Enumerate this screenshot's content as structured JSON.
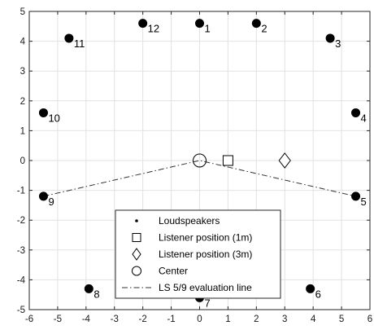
{
  "chart_data": {
    "type": "scatter",
    "title": "",
    "xlabel": "",
    "ylabel": "",
    "xlim": [
      -6,
      6
    ],
    "ylim": [
      -5,
      5
    ],
    "grid": true,
    "x_ticks": [
      -6,
      -5,
      -4,
      -3,
      -2,
      -1,
      0,
      1,
      2,
      3,
      4,
      5,
      6
    ],
    "y_ticks": [
      -5,
      -4,
      -3,
      -2,
      -1,
      0,
      1,
      2,
      3,
      4,
      5
    ],
    "legend_placement": "bottom-center",
    "series": [
      {
        "name": "Loudspeakers",
        "marker": "filled-circle",
        "points": [
          {
            "label": "1",
            "x": 0,
            "y": 4.6
          },
          {
            "label": "2",
            "x": 2,
            "y": 4.6
          },
          {
            "label": "3",
            "x": 4.6,
            "y": 4.1
          },
          {
            "label": "4",
            "x": 5.5,
            "y": 1.6
          },
          {
            "label": "5",
            "x": 5.5,
            "y": -1.2
          },
          {
            "label": "6",
            "x": 3.9,
            "y": -4.3
          },
          {
            "label": "7",
            "x": 0,
            "y": -4.6
          },
          {
            "label": "8",
            "x": -3.9,
            "y": -4.3
          },
          {
            "label": "9",
            "x": -5.5,
            "y": -1.2
          },
          {
            "label": "10",
            "x": -5.5,
            "y": 1.6
          },
          {
            "label": "11",
            "x": -4.6,
            "y": 4.1
          },
          {
            "label": "12",
            "x": -2,
            "y": 4.6
          }
        ]
      },
      {
        "name": "Listener position (1m)",
        "marker": "square",
        "points": [
          {
            "x": 1,
            "y": 0
          }
        ]
      },
      {
        "name": "Listener position (3m)",
        "marker": "diamond",
        "points": [
          {
            "x": 3,
            "y": 0
          }
        ]
      },
      {
        "name": "Center",
        "marker": "circle",
        "points": [
          {
            "x": 0,
            "y": 0
          }
        ]
      },
      {
        "name": "LS 5/9 evaluation line",
        "marker": "dash-dot-line",
        "points": [
          {
            "x": -5.5,
            "y": -1.2
          },
          {
            "x": 0,
            "y": 0
          },
          {
            "x": 5.5,
            "y": -1.2
          }
        ]
      }
    ]
  }
}
